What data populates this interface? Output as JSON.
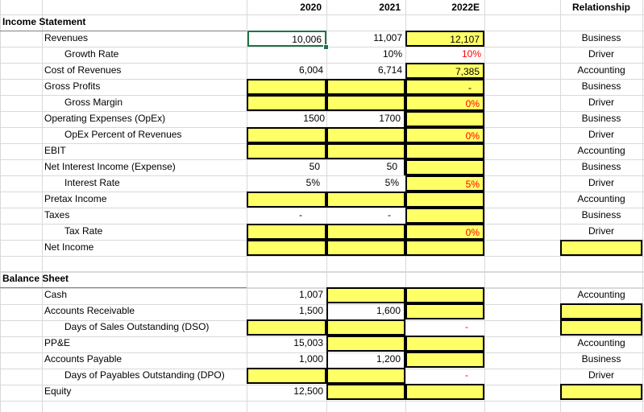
{
  "headers": {
    "y2020": "2020",
    "y2021": "2021",
    "y2022": "2022E",
    "relationship": "Relationship"
  },
  "income_statement": {
    "title": "Income Statement",
    "revenues": {
      "label": "Revenues",
      "v2020": "10,006",
      "v2021": "11,007",
      "v2022": "12,107",
      "rel": "Business"
    },
    "growth_rate": {
      "label": "Growth Rate",
      "v2021": "10%",
      "v2022": "10%",
      "rel": "Driver"
    },
    "cost_of_revenues": {
      "label": "Cost of Revenues",
      "v2020": "6,004",
      "v2021": "6,714",
      "v2022": "7,385",
      "rel": "Accounting"
    },
    "gross_profits": {
      "label": "Gross Profits",
      "v2022": "-",
      "rel": "Business"
    },
    "gross_margin": {
      "label": "Gross Margin",
      "v2022": "0%",
      "rel": "Driver"
    },
    "opex": {
      "label": "Operating Expenses (OpEx)",
      "v2020": "1500",
      "v2021": "1700",
      "rel": "Business"
    },
    "opex_pct": {
      "label": "OpEx Percent of Revenues",
      "v2022": "0%",
      "rel": "Driver"
    },
    "ebit": {
      "label": "EBIT",
      "rel": "Accounting"
    },
    "net_interest": {
      "label": "Net Interest Income (Expense)",
      "v2020": "50",
      "v2021": "50",
      "rel": "Business"
    },
    "interest_rate": {
      "label": "Interest Rate",
      "v2020": "5%",
      "v2021": "5%",
      "v2022": "5%",
      "rel": "Driver"
    },
    "pretax_income": {
      "label": "Pretax Income",
      "rel": "Accounting"
    },
    "taxes": {
      "label": "Taxes",
      "v2020": "-",
      "v2021": "-",
      "rel": "Business"
    },
    "tax_rate": {
      "label": "Tax Rate",
      "v2022": "0%",
      "rel": "Driver"
    },
    "net_income": {
      "label": "Net Income"
    }
  },
  "balance_sheet": {
    "title": "Balance Sheet",
    "cash": {
      "label": "Cash",
      "v2020": "1,007",
      "rel": "Accounting"
    },
    "accounts_receivable": {
      "label": "Accounts Receivable",
      "v2020": "1,500",
      "v2021": "1,600"
    },
    "dso": {
      "label": "Days of Sales Outstanding (DSO)",
      "v2022": "-"
    },
    "ppe": {
      "label": "PP&E",
      "v2020": "15,003",
      "rel": "Accounting"
    },
    "accounts_payable": {
      "label": "Accounts Payable",
      "v2020": "1,000",
      "v2021": "1,200",
      "rel": "Business"
    },
    "dpo": {
      "label": "Days of Payables Outstanding (DPO)",
      "v2022": "-",
      "rel": "Driver"
    },
    "equity": {
      "label": "Equity",
      "v2020": "12,500"
    }
  },
  "colors": {
    "input_fill": "#ffff66",
    "selection": "#217346",
    "driver_text": "#ff0000",
    "gridline": "#d9d9d9"
  }
}
